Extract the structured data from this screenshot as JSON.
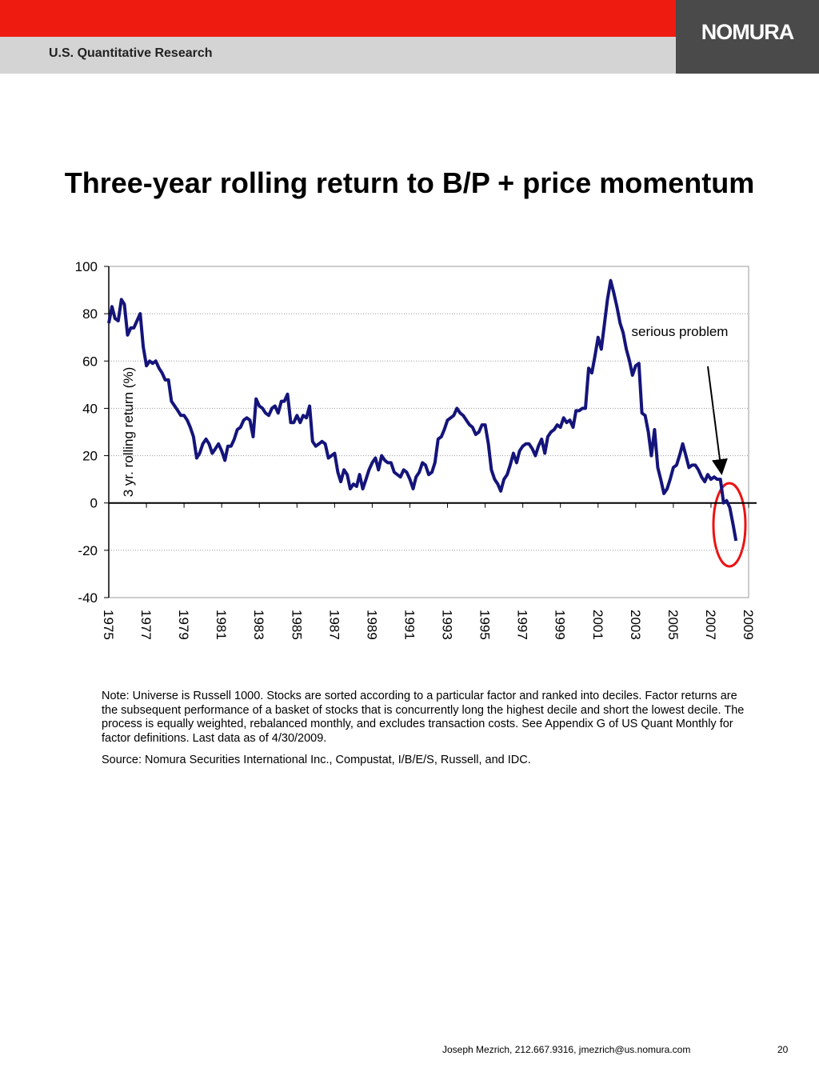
{
  "header": {
    "section": "U.S. Quantitative Research",
    "logo": "NOMURA"
  },
  "chart_data": {
    "type": "line",
    "title": "Three-year rolling return to B/P + price momentum",
    "ylabel": "3 yr. rolling return (%)",
    "annotation": "serious problem",
    "color": "#14147a",
    "grid": true,
    "xlim": [
      1975,
      2009
    ],
    "ylim": [
      -40,
      100
    ],
    "xticks": [
      1975,
      1977,
      1979,
      1981,
      1983,
      1985,
      1987,
      1989,
      1991,
      1993,
      1995,
      1997,
      1999,
      2001,
      2003,
      2005,
      2007,
      2009
    ],
    "yticks": [
      100,
      80,
      60,
      40,
      20,
      0,
      -20,
      -40
    ],
    "x": [
      1975,
      1975.17,
      1975.33,
      1975.5,
      1975.67,
      1975.83,
      1976,
      1976.17,
      1976.33,
      1976.5,
      1976.67,
      1976.83,
      1977,
      1977.17,
      1977.33,
      1977.5,
      1977.67,
      1977.83,
      1978,
      1978.17,
      1978.33,
      1978.5,
      1978.67,
      1978.83,
      1979,
      1979.17,
      1979.33,
      1979.5,
      1979.67,
      1979.83,
      1980,
      1980.17,
      1980.33,
      1980.5,
      1980.67,
      1980.83,
      1981,
      1981.17,
      1981.33,
      1981.5,
      1981.67,
      1981.83,
      1982,
      1982.17,
      1982.33,
      1982.5,
      1982.67,
      1982.83,
      1983,
      1983.17,
      1983.33,
      1983.5,
      1983.67,
      1983.83,
      1984,
      1984.17,
      1984.33,
      1984.5,
      1984.67,
      1984.83,
      1985,
      1985.17,
      1985.33,
      1985.5,
      1985.67,
      1985.83,
      1986,
      1986.17,
      1986.33,
      1986.5,
      1986.67,
      1986.83,
      1987,
      1987.17,
      1987.33,
      1987.5,
      1987.67,
      1987.83,
      1988,
      1988.17,
      1988.33,
      1988.5,
      1988.67,
      1988.83,
      1989,
      1989.17,
      1989.33,
      1989.5,
      1989.67,
      1989.83,
      1990,
      1990.17,
      1990.33,
      1990.5,
      1990.67,
      1990.83,
      1991,
      1991.17,
      1991.33,
      1991.5,
      1991.67,
      1991.83,
      1992,
      1992.17,
      1992.33,
      1992.5,
      1992.67,
      1992.83,
      1993,
      1993.17,
      1993.33,
      1993.5,
      1993.67,
      1993.83,
      1994,
      1994.17,
      1994.33,
      1994.5,
      1994.67,
      1994.83,
      1995,
      1995.17,
      1995.33,
      1995.5,
      1995.67,
      1995.83,
      1996,
      1996.17,
      1996.33,
      1996.5,
      1996.67,
      1996.83,
      1997,
      1997.17,
      1997.33,
      1997.5,
      1997.67,
      1997.83,
      1998,
      1998.17,
      1998.33,
      1998.5,
      1998.67,
      1998.83,
      1999,
      1999.17,
      1999.33,
      1999.5,
      1999.67,
      1999.83,
      2000,
      2000.17,
      2000.33,
      2000.5,
      2000.67,
      2000.83,
      2001,
      2001.17,
      2001.33,
      2001.5,
      2001.67,
      2001.83,
      2002,
      2002.17,
      2002.33,
      2002.5,
      2002.67,
      2002.83,
      2003,
      2003.17,
      2003.33,
      2003.5,
      2003.67,
      2003.83,
      2004,
      2004.17,
      2004.33,
      2004.5,
      2004.67,
      2004.83,
      2005,
      2005.17,
      2005.33,
      2005.5,
      2005.67,
      2005.83,
      2006,
      2006.17,
      2006.33,
      2006.5,
      2006.67,
      2006.83,
      2007,
      2007.17,
      2007.33,
      2007.5,
      2007.67,
      2007.83,
      2008,
      2008.17,
      2008.33
    ],
    "values": [
      76,
      83,
      78,
      77,
      86,
      84,
      71,
      74,
      74,
      77,
      80,
      66,
      58,
      60,
      59,
      60,
      57,
      55,
      52,
      52,
      43,
      41,
      39,
      37,
      37,
      35,
      32,
      28,
      19,
      21,
      25,
      27,
      25,
      21,
      23,
      25,
      22,
      18,
      24,
      24,
      27,
      31,
      32,
      35,
      36,
      35,
      28,
      44,
      41,
      40,
      38,
      37,
      40,
      41,
      38,
      43,
      43,
      46,
      34,
      34,
      37,
      34,
      37,
      36,
      41,
      26,
      24,
      25,
      26,
      25,
      19,
      20,
      21,
      13,
      9,
      14,
      12,
      6,
      8,
      7,
      12,
      6,
      10,
      14,
      17,
      19,
      14,
      20,
      18,
      17,
      17,
      13,
      12,
      11,
      14,
      13,
      10,
      6,
      11,
      13,
      17,
      16,
      12,
      13,
      17,
      27,
      28,
      31,
      35,
      36,
      37,
      40,
      38,
      37,
      35,
      33,
      32,
      29,
      30,
      33,
      33,
      25,
      14,
      10,
      8,
      5,
      10,
      12,
      16,
      21,
      17,
      22,
      24,
      25,
      25,
      23,
      20,
      24,
      27,
      21,
      28,
      30,
      31,
      33,
      32,
      36,
      34,
      35,
      32,
      39,
      39,
      40,
      40,
      57,
      55,
      62,
      70,
      65,
      75,
      86,
      94,
      89,
      83,
      76,
      72,
      65,
      60,
      54,
      58,
      59,
      38,
      37,
      30,
      20,
      31,
      15,
      10,
      4,
      6,
      10,
      15,
      16,
      20,
      25,
      20,
      15,
      16,
      16,
      14,
      11,
      9,
      12,
      10,
      11,
      10,
      10,
      0,
      1,
      -2,
      -9,
      -16
    ]
  },
  "notes": [
    "Note: Universe is Russell 1000. Stocks are sorted according to a particular factor and ranked into deciles. Factor returns are the subsequent performance of a basket of stocks that is concurrently long the highest decile and short the lowest decile. The process is equally weighted, rebalanced monthly, and excludes transaction costs. See Appendix G of US Quant Monthly for factor definitions. Last data as of 4/30/2009.",
    "Source: Nomura Securities International Inc., Compustat, I/B/E/S, Russell, and IDC."
  ],
  "footer": {
    "contact": "Joseph Mezrich, 212.667.9316, jmezrich@us.nomura.com",
    "page": "20"
  }
}
